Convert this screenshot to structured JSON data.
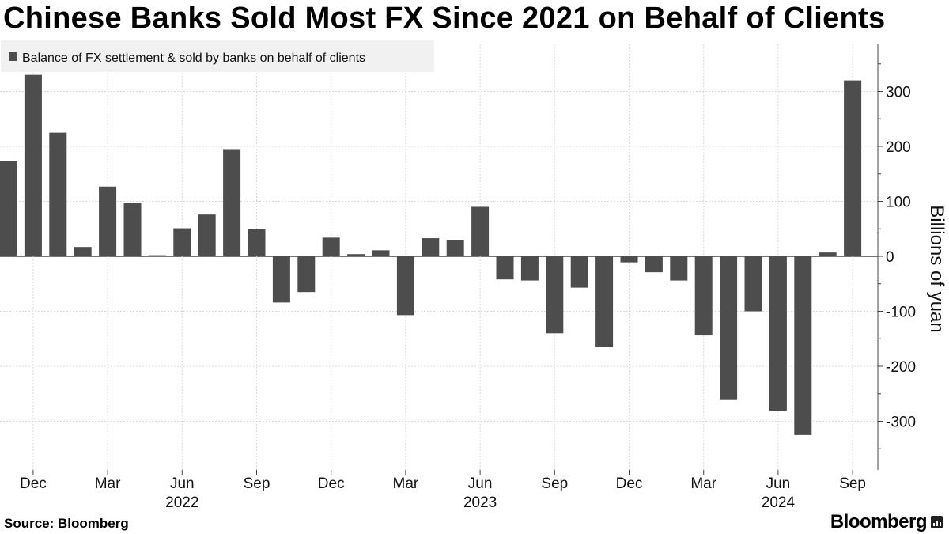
{
  "title": "Chinese Banks Sold Most FX Since 2021 on Behalf of Clients",
  "source": "Source:  Bloomberg",
  "brand": "Bloomberg",
  "colors": {
    "bar": "#4d4d4d",
    "grid": "#d9d9d9",
    "legend_bg": "#f1f1f1"
  },
  "chart_data": {
    "type": "bar",
    "title": "Chinese Banks Sold Most FX Since 2021 on Behalf of Clients",
    "legend": [
      "Balance of FX settlement & sold by banks on behalf of clients"
    ],
    "ylabel": "Billions of yuan",
    "ylim": [
      -365,
      385
    ],
    "yticks": [
      300,
      200,
      100,
      0,
      -100,
      -200,
      -300
    ],
    "ytick_labels": [
      "300",
      "200",
      "100",
      "0",
      "-100",
      "-200",
      "-300"
    ],
    "grid": true,
    "categories": [
      "2021-11",
      "2021-12",
      "2022-01",
      "2022-02",
      "2022-03",
      "2022-04",
      "2022-05",
      "2022-06",
      "2022-07",
      "2022-08",
      "2022-09",
      "2022-10",
      "2022-11",
      "2022-12",
      "2023-01",
      "2023-02",
      "2023-03",
      "2023-04",
      "2023-05",
      "2023-06",
      "2023-07",
      "2023-08",
      "2023-09",
      "2023-10",
      "2023-11",
      "2023-12",
      "2024-01",
      "2024-02",
      "2024-03",
      "2024-04",
      "2024-05",
      "2024-06",
      "2024-07",
      "2024-08",
      "2024-09"
    ],
    "values": [
      174,
      330,
      225,
      17,
      127,
      97,
      2,
      51,
      76,
      195,
      49,
      -84,
      -65,
      34,
      4,
      11,
      -107,
      33,
      30,
      90,
      -42,
      -44,
      -140,
      -57,
      -165,
      -11,
      -29,
      -44,
      -144,
      -260,
      -100,
      -281,
      -325,
      7,
      320
    ],
    "x_tick_labels": [
      {
        "index": 1,
        "label": "Dec"
      },
      {
        "index": 4,
        "label": "Mar"
      },
      {
        "index": 7,
        "label": "Jun"
      },
      {
        "index": 10,
        "label": "Sep"
      },
      {
        "index": 13,
        "label": "Dec"
      },
      {
        "index": 16,
        "label": "Mar"
      },
      {
        "index": 19,
        "label": "Jun"
      },
      {
        "index": 22,
        "label": "Sep"
      },
      {
        "index": 25,
        "label": "Dec"
      },
      {
        "index": 28,
        "label": "Mar"
      },
      {
        "index": 31,
        "label": "Jun"
      },
      {
        "index": 34,
        "label": "Sep"
      }
    ],
    "year_labels": [
      {
        "index": 7,
        "label": "2022"
      },
      {
        "index": 19,
        "label": "2023"
      },
      {
        "index": 31,
        "label": "2024"
      }
    ]
  }
}
